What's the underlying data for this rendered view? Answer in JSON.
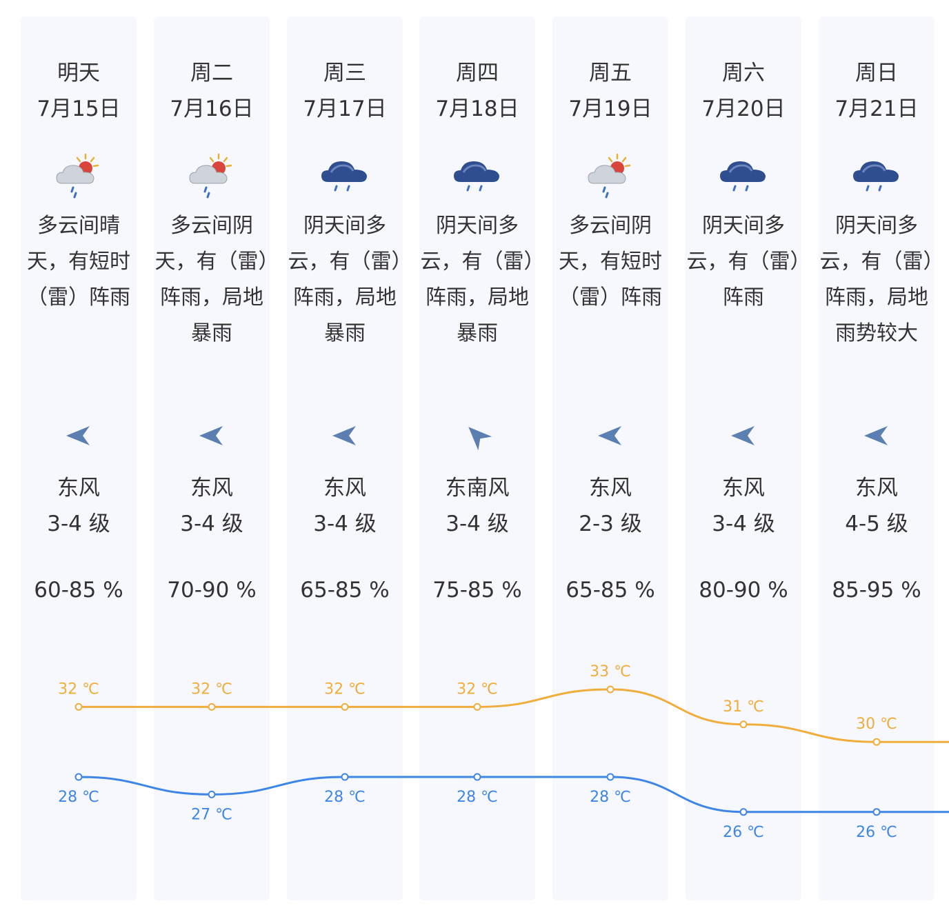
{
  "days": [
    {
      "day": "明天",
      "date": "7月15日",
      "weather": "多云间晴天，有短时（雷）阵雨",
      "icon": "partly-sunny-rain-icon",
      "wind_dir": "东风",
      "wind_level": "3-4 级",
      "humidity": "60-85 %",
      "high": "32 ℃",
      "low": "28 ℃"
    },
    {
      "day": "周二",
      "date": "7月16日",
      "weather": "多云间阴天，有（雷）阵雨，局地暴雨",
      "icon": "partly-sunny-rain-icon",
      "wind_dir": "东风",
      "wind_level": "3-4 级",
      "humidity": "70-90 %",
      "high": "32 ℃",
      "low": "27 ℃"
    },
    {
      "day": "周三",
      "date": "7月17日",
      "weather": "阴天间多云，有（雷）阵雨，局地暴雨",
      "icon": "cloud-rain-icon",
      "wind_dir": "东风",
      "wind_level": "3-4 级",
      "humidity": "65-85 %",
      "high": "32 ℃",
      "low": "28 ℃"
    },
    {
      "day": "周四",
      "date": "7月18日",
      "weather": "阴天间多云，有（雷）阵雨，局地暴雨",
      "icon": "cloud-rain-icon",
      "wind_dir": "东南风",
      "wind_level": "3-4 级",
      "humidity": "75-85 %",
      "high": "32 ℃",
      "low": "28 ℃"
    },
    {
      "day": "周五",
      "date": "7月19日",
      "weather": "多云间阴天，有短时（雷）阵雨",
      "icon": "partly-sunny-rain-icon",
      "wind_dir": "东风",
      "wind_level": "2-3 级",
      "humidity": "65-85 %",
      "high": "33 ℃",
      "low": "28 ℃"
    },
    {
      "day": "周六",
      "date": "7月20日",
      "weather": "阴天间多云，有（雷）阵雨",
      "icon": "cloud-rain-icon",
      "wind_dir": "东风",
      "wind_level": "3-4 级",
      "humidity": "80-90 %",
      "high": "31 ℃",
      "low": "26 ℃"
    },
    {
      "day": "周日",
      "date": "7月21日",
      "weather": "阴天间多云，有（雷）阵雨，局地雨势较大",
      "icon": "cloud-rain-icon",
      "wind_dir": "东风",
      "wind_level": "4-5 级",
      "humidity": "85-95 %",
      "high": "30 ℃",
      "low": "26 ℃"
    }
  ],
  "chart_data": {
    "type": "line",
    "categories": [
      "7月15日",
      "7月16日",
      "7月17日",
      "7月18日",
      "7月19日",
      "7月20日",
      "7月21日"
    ],
    "series": [
      {
        "values": [
          32,
          32,
          32,
          32,
          33,
          31,
          30
        ],
        "color": "#f0ad3c"
      },
      {
        "values": [
          28,
          27,
          28,
          28,
          28,
          26,
          26
        ],
        "color": "#3e86e6"
      }
    ],
    "unit": "℃"
  },
  "colors": {
    "high": "#f0ad3c",
    "low": "#3e86e6",
    "arrow": "#5b7fb0",
    "column_bg": "#f6f8fd"
  }
}
